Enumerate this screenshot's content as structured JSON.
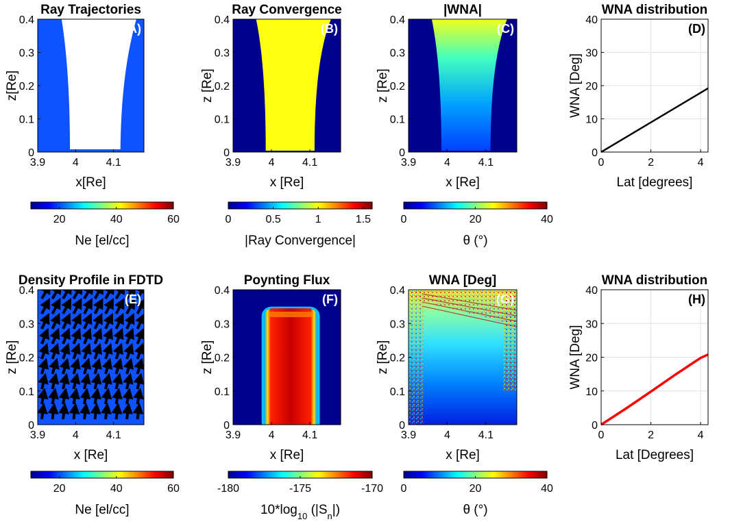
{
  "colors": {
    "navy": "#00008f",
    "fill_blue": "#0f52ff",
    "yellow": "#ffff10",
    "red": "#c8150f",
    "black": "#000000"
  },
  "chart_data": [
    {
      "id": "A",
      "type": "heatmap",
      "title": "Ray Trajectories",
      "panel_label": "(A)",
      "xlabel": "x[Re]",
      "ylabel": "z[Re]",
      "xlim": [
        3.9,
        4.18
      ],
      "ylim": [
        0,
        0.4
      ],
      "xticks": [
        "3.9",
        "4",
        "4.1"
      ],
      "yticks": [
        "0",
        "0.1",
        "0.2",
        "0.3",
        "0.4"
      ],
      "colorbar": {
        "label": "Ne [el/cc]",
        "ticks": [
          "20",
          "40",
          "60"
        ],
        "range": [
          10,
          60
        ]
      },
      "background_value": 20,
      "description_value": "uniform density, white region = ray coverage"
    },
    {
      "id": "B",
      "type": "heatmap",
      "title": "Ray Convergence",
      "panel_label": "(B)",
      "xlabel": "x [Re]",
      "ylabel": "z [Re]",
      "xlim": [
        3.9,
        4.18
      ],
      "ylim": [
        0,
        0.4
      ],
      "xticks": [
        "3.9",
        "4",
        "4.1"
      ],
      "yticks": [
        "0",
        "0.1",
        "0.2",
        "0.3",
        "0.4"
      ],
      "colorbar": {
        "label": "|Ray Convergence|",
        "ticks": [
          "0",
          "0.5",
          "1",
          "1.5"
        ],
        "range": [
          0,
          1.6
        ]
      },
      "inside_value": 1,
      "outside_value": 0
    },
    {
      "id": "C",
      "type": "heatmap",
      "title": "|WNA|",
      "panel_label": "(C)",
      "xlabel": "x [Re]",
      "ylabel": "z [Re]",
      "xlim": [
        3.9,
        4.18
      ],
      "ylim": [
        0,
        0.4
      ],
      "xticks": [
        "3.9",
        "4",
        "4.1"
      ],
      "yticks": [
        "0",
        "0.1",
        "0.2",
        "0.3",
        "0.4"
      ],
      "colorbar": {
        "label": "θ (°)",
        "ticks": [
          "0",
          "20",
          "40"
        ],
        "range": [
          0,
          40
        ]
      },
      "value_at_bottom": 0,
      "value_at_top": 20
    },
    {
      "id": "D",
      "type": "line",
      "title": "WNA distribution",
      "panel_label": "(D)",
      "xlabel": "Lat [degrees]",
      "ylabel": "WNA [Deg]",
      "xlim": [
        0,
        4.3
      ],
      "ylim": [
        0,
        40
      ],
      "xticks": [
        "0",
        "2",
        "4"
      ],
      "yticks": [
        "0",
        "10",
        "20",
        "30",
        "40"
      ],
      "grid": true,
      "series": [
        {
          "color": "#000000",
          "x": [
            0,
            4.3
          ],
          "y": [
            0,
            19.2
          ]
        }
      ]
    },
    {
      "id": "E",
      "type": "heatmap",
      "title": "Density Profile in FDTD",
      "panel_label": "(E)",
      "xlabel": "x [Re]",
      "ylabel": "z [Re]",
      "xlim": [
        3.9,
        4.18
      ],
      "ylim": [
        0,
        0.4
      ],
      "xticks": [
        "3.9",
        "4",
        "4.1"
      ],
      "yticks": [
        "0",
        "0.1",
        "0.2",
        "0.3",
        "0.4"
      ],
      "colorbar": {
        "label": "Ne [el/cc]",
        "ticks": [
          "20",
          "40",
          "60"
        ],
        "range": [
          10,
          60
        ]
      },
      "background_value": 20,
      "overlay": "magnetic field direction arrows"
    },
    {
      "id": "F",
      "type": "heatmap",
      "title": "Poynting Flux",
      "panel_label": "(F)",
      "xlabel": "x [Re]",
      "ylabel": "z [Re]",
      "xlim": [
        3.9,
        4.18
      ],
      "ylim": [
        0,
        0.4
      ],
      "xticks": [
        "3.9",
        "4",
        "4.1"
      ],
      "yticks": [
        "0",
        "0.1",
        "0.2",
        "0.3",
        "0.4"
      ],
      "colorbar": {
        "label": "10*log10 (|Sn|)",
        "ticks": [
          "-180",
          "-175",
          "-170"
        ],
        "range": [
          -180,
          -170
        ]
      },
      "inside_value": -171,
      "outside_value": -180
    },
    {
      "id": "G",
      "type": "heatmap",
      "title": "WNA [Deg]",
      "panel_label": "(G)",
      "xlabel": "x [Re]",
      "ylabel": "z [Re]",
      "xlim": [
        3.9,
        4.18
      ],
      "ylim": [
        0,
        0.4
      ],
      "xticks": [
        "3.9",
        "4",
        "4.1"
      ],
      "yticks": [
        "0",
        "0.1",
        "0.2",
        "0.3",
        "0.4"
      ],
      "colorbar": {
        "label": "θ (°)",
        "ticks": [
          "0",
          "20",
          "40"
        ],
        "range": [
          0,
          40
        ]
      },
      "value_at_bottom": 2,
      "value_at_top": 24
    },
    {
      "id": "H",
      "type": "line",
      "title": "WNA distribution",
      "panel_label": "(H)",
      "xlabel": "Lat [Degrees]",
      "ylabel": "WNA [Deg]",
      "xlim": [
        0,
        4.3
      ],
      "ylim": [
        0,
        40
      ],
      "xticks": [
        "0",
        "2",
        "4"
      ],
      "yticks": [
        "0",
        "10",
        "20",
        "30",
        "40"
      ],
      "grid": true,
      "series": [
        {
          "color": "#ff0000",
          "x": [
            0,
            1,
            2,
            3,
            4,
            4.3
          ],
          "y": [
            0,
            4.8,
            9.8,
            14.9,
            19.8,
            20.8
          ]
        }
      ]
    }
  ]
}
